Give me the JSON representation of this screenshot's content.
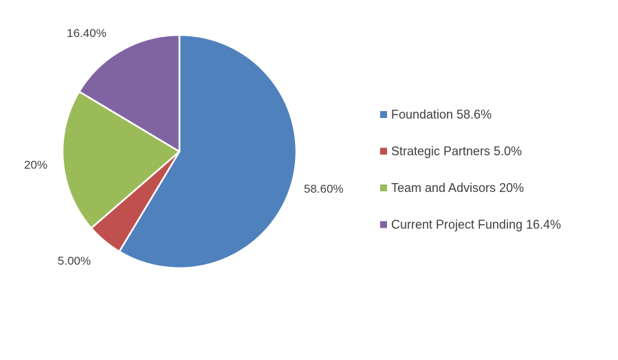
{
  "chart_data": {
    "type": "pie",
    "title": "",
    "legend_position": "right",
    "slices": [
      {
        "label": "Foundation",
        "value": 58.6,
        "data_label": "58.60%",
        "legend": "Foundation 58.6%",
        "color": "#4F81BD"
      },
      {
        "label": "Strategic Partners",
        "value": 5.0,
        "data_label": "5.00%",
        "legend": "Strategic Partners 5.0%",
        "color": "#C0504D"
      },
      {
        "label": "Team and Advisors",
        "value": 20,
        "data_label": "20%",
        "legend": "Team and Advisors 20%",
        "color": "#9BBB59"
      },
      {
        "label": "Current Project Funding",
        "value": 16.4,
        "data_label": "16.40%",
        "legend": "Current Project Funding 16.4%",
        "color": "#8064A2"
      }
    ]
  }
}
